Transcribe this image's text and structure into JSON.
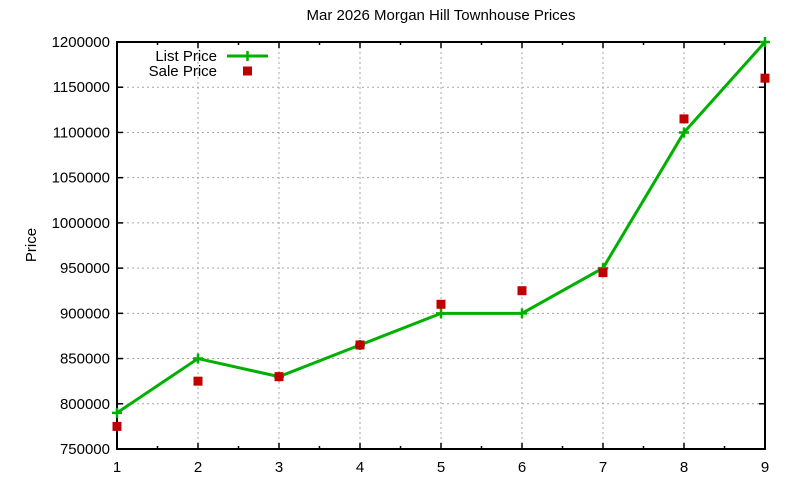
{
  "colors": {
    "list_line": "#00B000",
    "sale_square": "#C00000",
    "grid": "#A6A6A6",
    "axis": "#000000",
    "background": "#FFFFFF"
  },
  "legend": {
    "items": [
      {
        "label": "List Price",
        "marker": "line-plus-marker"
      },
      {
        "label": "Sale Price",
        "marker": "square-marker"
      }
    ]
  },
  "chart_data": {
    "type": "line",
    "title": "Mar 2026 Morgan Hill Townhouse Prices",
    "xlabel": "",
    "ylabel": "Price",
    "x": [
      1,
      2,
      3,
      4,
      5,
      6,
      7,
      8,
      9
    ],
    "series": [
      {
        "name": "List Price",
        "style": "line+plus",
        "color": "#00B000",
        "values": [
          790000,
          850000,
          830000,
          865000,
          900000,
          900000,
          950000,
          1100000,
          1200000
        ]
      },
      {
        "name": "Sale Price",
        "style": "squares",
        "color": "#C00000",
        "values": [
          775000,
          825000,
          830000,
          865000,
          910000,
          925000,
          945000,
          1115000,
          1160000
        ]
      }
    ],
    "xlim": [
      1,
      9
    ],
    "ylim": [
      750000,
      1200000
    ],
    "xticks": [
      1,
      2,
      3,
      4,
      5,
      6,
      7,
      8,
      9
    ],
    "ytick_step": 50000,
    "x_minor_tick_step": 0.5,
    "grid": true,
    "grid_style": "dotted",
    "legend_position": "top-left-inside",
    "tick_mirroring": true
  }
}
